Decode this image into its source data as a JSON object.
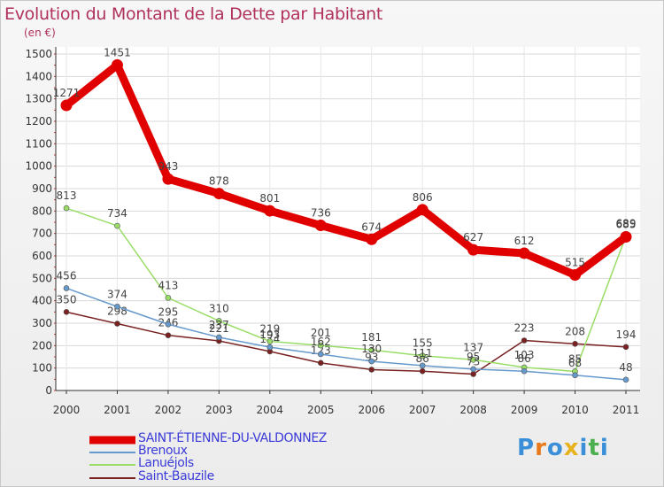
{
  "title": "Evolution du Montant de la Dette par Habitant",
  "unit": "(en €)",
  "logo": {
    "letters": [
      "P",
      "r",
      "o",
      "x",
      "i",
      "t",
      "i"
    ],
    "colors": [
      "#3b8fd9",
      "#e87a1d",
      "#3b8fd9",
      "#e8b21d",
      "#3b8fd9",
      "#4caf50",
      "#3b8fd9"
    ]
  },
  "chart_data": {
    "type": "line",
    "categories": [
      "2000",
      "2001",
      "2002",
      "2003",
      "2004",
      "2005",
      "2006",
      "2007",
      "2008",
      "2009",
      "2010",
      "2011"
    ],
    "ylim": [
      0,
      1500
    ],
    "yticks": [
      "0",
      "100",
      "200",
      "300",
      "400",
      "500",
      "600",
      "700",
      "800",
      "900",
      "1000",
      "1100",
      "1200",
      "1300",
      "1400",
      "1500"
    ],
    "grid": true,
    "legend_position": "bottom-left",
    "series": [
      {
        "name": "SAINT-ÉTIENNE-DU-VALDONNEZ",
        "color": "#e00000",
        "values": [
          1271,
          1451,
          943,
          878,
          801,
          736,
          674,
          806,
          627,
          612,
          515,
          685
        ],
        "labels": [
          "1271",
          "1451",
          "943",
          "878",
          "801",
          "736",
          "674",
          "806",
          "627",
          "612",
          "515",
          "685"
        ]
      },
      {
        "name": "Brenoux",
        "color": "#6699cc",
        "values": [
          456,
          374,
          295,
          237,
          193,
          162,
          130,
          111,
          95,
          86,
          68,
          48
        ],
        "labels": [
          "456",
          "374",
          "295",
          "237",
          "193",
          "162",
          "130",
          "111",
          "95",
          "86",
          "68",
          "48"
        ]
      },
      {
        "name": "Lanuéjols",
        "color": "#99dd66",
        "values": [
          813,
          734,
          413,
          310,
          219,
          201,
          181,
          155,
          137,
          103,
          85,
          689
        ],
        "labels": [
          "813",
          "734",
          "413",
          "310",
          "219",
          "201",
          "181",
          "155",
          "137",
          "103",
          "85",
          "689"
        ]
      },
      {
        "name": "Saint-Bauzile",
        "color": "#7a2020",
        "values": [
          350,
          298,
          246,
          221,
          174,
          123,
          93,
          86,
          73,
          223,
          208,
          194
        ],
        "labels": [
          "350",
          "298",
          "246",
          "221",
          "174",
          "123",
          "93",
          "86",
          "73",
          "223",
          "208",
          "194"
        ]
      }
    ]
  }
}
